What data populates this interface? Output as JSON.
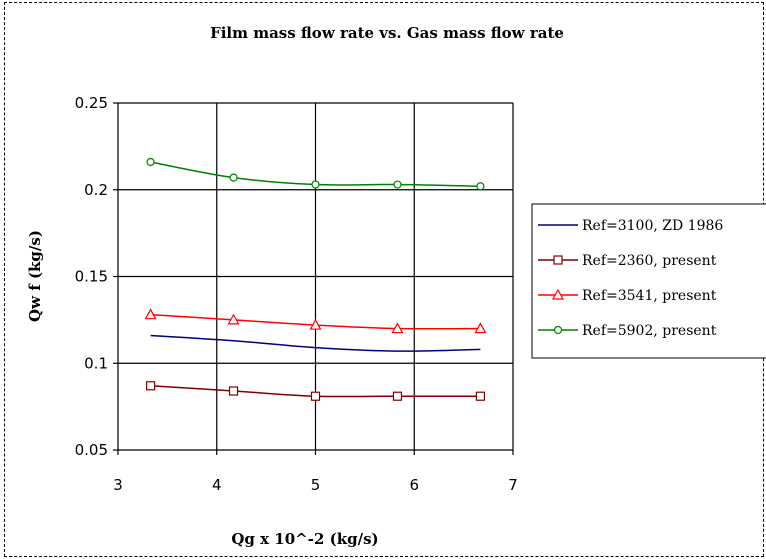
{
  "chart_data": {
    "type": "line",
    "title": "Film mass flow rate vs. Gas mass flow rate",
    "xlabel": "Qg x 10^-2 (kg/s)",
    "ylabel": "Qw f (kg/s)",
    "xlim": [
      3,
      7
    ],
    "ylim": [
      0.05,
      0.25
    ],
    "x_ticks": [
      "3",
      "4",
      "5",
      "6",
      "7"
    ],
    "y_ticks": [
      "0.05",
      "0.1",
      "0.15",
      "0.2",
      "0.25"
    ],
    "grid": true,
    "legend_position": "right",
    "series": [
      {
        "name": "Ref=3100, ZD 1986",
        "color": "#000080",
        "marker": "none",
        "x": [
          3.33,
          4.17,
          5.0,
          5.83,
          6.67
        ],
        "y": [
          0.116,
          0.113,
          0.109,
          0.107,
          0.108
        ]
      },
      {
        "name": "Ref=2360, present",
        "color": "#800000",
        "marker": "square",
        "x": [
          3.33,
          4.17,
          5.0,
          5.83,
          6.67
        ],
        "y": [
          0.087,
          0.084,
          0.081,
          0.081,
          0.081
        ]
      },
      {
        "name": "Ref=3541, present",
        "color": "#ff0000",
        "marker": "triangle",
        "x": [
          3.33,
          4.17,
          5.0,
          5.83,
          6.67
        ],
        "y": [
          0.128,
          0.125,
          0.122,
          0.12,
          0.12
        ]
      },
      {
        "name": "Ref=5902, present",
        "color": "#008000",
        "marker": "circle",
        "x": [
          3.33,
          4.17,
          5.0,
          5.83,
          6.67
        ],
        "y": [
          0.216,
          0.207,
          0.203,
          0.203,
          0.202
        ]
      }
    ]
  }
}
